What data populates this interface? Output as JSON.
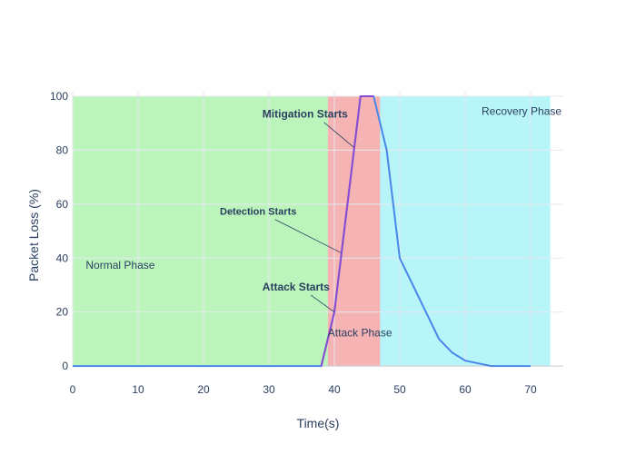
{
  "chart_data": {
    "type": "line",
    "title": "",
    "xlabel": "Time(s)",
    "ylabel": "Packet Loss (%)",
    "xlim": [
      0,
      75
    ],
    "ylim": [
      -5,
      102
    ],
    "x_ticks": [
      0,
      10,
      20,
      30,
      40,
      50,
      60,
      70
    ],
    "y_ticks": [
      0,
      20,
      40,
      60,
      80,
      100
    ],
    "grid": true,
    "phases": [
      {
        "label": "Normal Phase",
        "x_start": 0,
        "x_end": 39,
        "color": "#90EE90",
        "label_x": 2,
        "label_y": 36
      },
      {
        "label": "Attack Phase",
        "x_start": 39,
        "x_end": 47,
        "color": "#F08080",
        "label_x": 39,
        "label_y": 11
      },
      {
        "label": "Recovery Phase",
        "x_start": 47,
        "x_end": 73,
        "color": "#87EEF5",
        "label_x": 62.5,
        "label_y": 93
      }
    ],
    "series": [
      {
        "line_color": "#4a86e8",
        "attack_color": "#8a4bd1",
        "x": [
          0,
          38,
          40,
          44,
          46,
          48,
          50,
          52,
          54,
          56,
          58,
          60,
          62,
          64,
          66,
          68,
          70
        ],
        "y": [
          0,
          0,
          20,
          100,
          100,
          80,
          40,
          30,
          20,
          10,
          5,
          2,
          1,
          0,
          0,
          0,
          0
        ]
      }
    ],
    "annotations": [
      {
        "text": "Attack Starts",
        "x": 40,
        "y": 20,
        "text_x": 29,
        "text_y": 28,
        "style": "bold"
      },
      {
        "text": "Detection Starts",
        "x": 41,
        "y": 42,
        "text_x": 22.5,
        "text_y": 56,
        "style": "small"
      },
      {
        "text": "Mitigation Starts",
        "x": 43,
        "y": 81,
        "text_x": 29,
        "text_y": 92,
        "style": "bold"
      }
    ]
  }
}
